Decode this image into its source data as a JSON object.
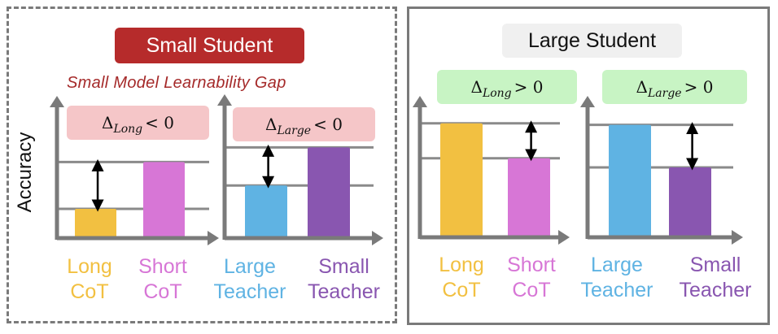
{
  "left_panel": {
    "title": "Small Student",
    "gap_label": "Small Model Learnability Gap",
    "y_axis_label": "Accuracy",
    "charts": [
      {
        "delta_symbol": "Δ",
        "delta_sub": "Long",
        "delta_rest": "< 0",
        "categories": [
          {
            "line1": "Long",
            "line2": "CoT",
            "color": "#f2c041"
          },
          {
            "line1": "Short",
            "line2": "CoT",
            "color": "#d776d6"
          }
        ],
        "values": [
          0.2,
          0.52
        ]
      },
      {
        "delta_symbol": "Δ",
        "delta_sub": "Large",
        "delta_rest": "< 0",
        "categories": [
          {
            "line1": "Large",
            "line2": "Teacher",
            "color": "#5fb3e3"
          },
          {
            "line1": "Small",
            "line2": "Teacher",
            "color": "#8956b0"
          }
        ],
        "values": [
          0.36,
          0.62
        ]
      }
    ]
  },
  "right_panel": {
    "title": "Large Student",
    "charts": [
      {
        "delta_symbol": "Δ",
        "delta_sub": "Long",
        "delta_rest": "> 0",
        "categories": [
          {
            "line1": "Long",
            "line2": "CoT",
            "color": "#f2c041"
          },
          {
            "line1": "Short",
            "line2": "CoT",
            "color": "#d776d6"
          }
        ],
        "values": [
          0.75,
          0.52
        ]
      },
      {
        "delta_symbol": "Δ",
        "delta_sub": "Large",
        "delta_rest": "> 0",
        "categories": [
          {
            "line1": "Large",
            "line2": "Teacher",
            "color": "#5fb3e3"
          },
          {
            "line1": "Small",
            "line2": "Teacher",
            "color": "#8956b0"
          }
        ],
        "values": [
          0.74,
          0.46
        ]
      }
    ]
  },
  "colors": {
    "axis": "#7a7a7a",
    "gridline": "#8a8a8a",
    "arrow": "#000000",
    "title_small_bg": "#b62b2b",
    "title_large_bg": "#f0f0f0",
    "negative_delta_bg": "#f5c6c8",
    "positive_delta_bg": "#c8f4c4"
  }
}
